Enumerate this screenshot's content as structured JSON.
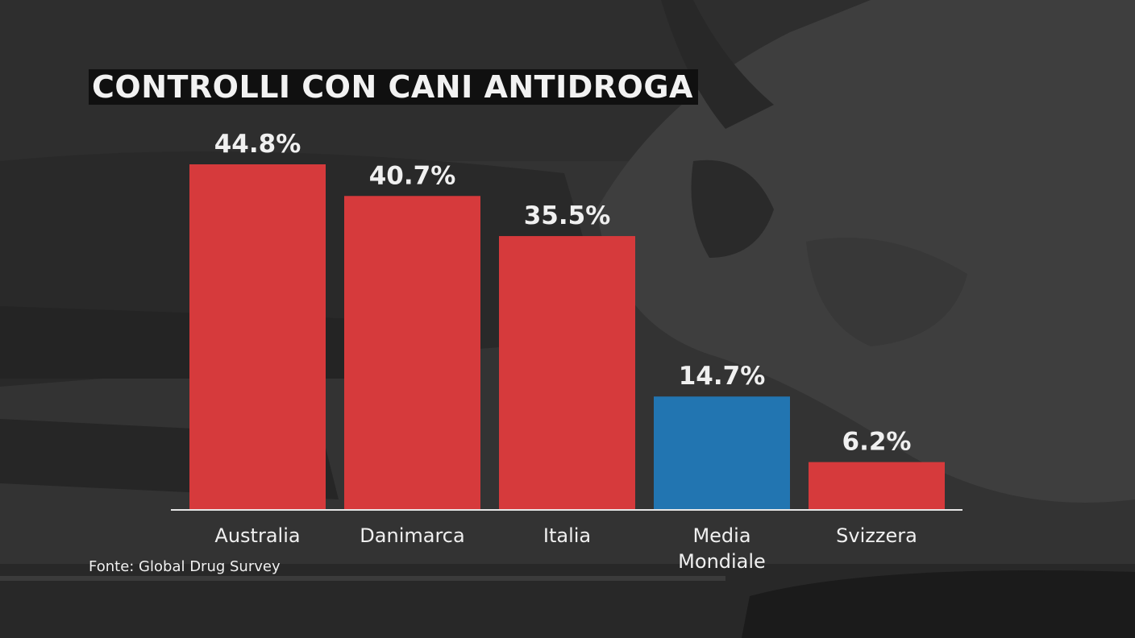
{
  "chart_data": {
    "type": "bar",
    "title": "CONTROLLI CON CANI ANTIDROGA",
    "categories": [
      [
        "Australia"
      ],
      [
        "Danimarca"
      ],
      [
        "Italia"
      ],
      [
        "Media",
        "Mondiale"
      ],
      [
        "Svizzera"
      ]
    ],
    "values": [
      44.8,
      40.7,
      35.5,
      14.7,
      6.2
    ],
    "value_labels": [
      "44.8%",
      "40.7%",
      "35.5%",
      "14.7%",
      "6.2%"
    ],
    "bar_colors": [
      "#d63a3c",
      "#d63a3c",
      "#d63a3c",
      "#2275b1",
      "#d63a3c"
    ],
    "ylim": [
      0,
      44.8
    ],
    "grid": false,
    "legend": "none",
    "source": "Fonte: Global Drug Survey"
  },
  "colors": {
    "highlight": "#d63a3c",
    "average": "#2275b1",
    "text": "#f0f0f0",
    "title_background": "#101010"
  }
}
